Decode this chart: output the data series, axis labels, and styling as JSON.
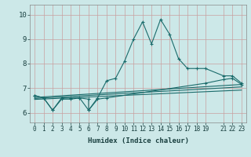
{
  "xlabel": "Humidex (Indice chaleur)",
  "bg_color": "#cce8e8",
  "line_color": "#1a6b6b",
  "grid_color": "#b0d4d4",
  "xlim": [
    -0.5,
    23.5
  ],
  "ylim": [
    5.6,
    10.4
  ],
  "yticks": [
    6,
    7,
    8,
    9,
    10
  ],
  "xticks": [
    0,
    1,
    2,
    3,
    4,
    5,
    6,
    7,
    8,
    9,
    10,
    11,
    12,
    13,
    14,
    15,
    16,
    17,
    18,
    19,
    21,
    22,
    23
  ],
  "line1_x": [
    0,
    1,
    2,
    3,
    4,
    5,
    6,
    7,
    8,
    9,
    10,
    11,
    12,
    13,
    14,
    15,
    16,
    17,
    18,
    19,
    21,
    22,
    23
  ],
  "line1_y": [
    6.7,
    6.6,
    6.1,
    6.6,
    6.6,
    6.6,
    6.1,
    6.6,
    7.3,
    7.4,
    8.1,
    9.0,
    9.7,
    8.8,
    9.8,
    9.2,
    8.2,
    7.8,
    7.8,
    7.8,
    7.5,
    7.5,
    7.2
  ],
  "line2_x": [
    0,
    1,
    2,
    3,
    4,
    5,
    6,
    6,
    7,
    8,
    19,
    21,
    22,
    23
  ],
  "line2_y": [
    6.7,
    6.6,
    6.1,
    6.55,
    6.55,
    6.6,
    6.55,
    6.1,
    6.55,
    6.6,
    7.2,
    7.35,
    7.4,
    7.15
  ],
  "trend1_x": [
    0,
    23
  ],
  "trend1_y": [
    6.62,
    7.15
  ],
  "trend2_x": [
    0,
    23
  ],
  "trend2_y": [
    6.58,
    7.05
  ],
  "trend3_x": [
    0,
    23
  ],
  "trend3_y": [
    6.54,
    6.92
  ]
}
